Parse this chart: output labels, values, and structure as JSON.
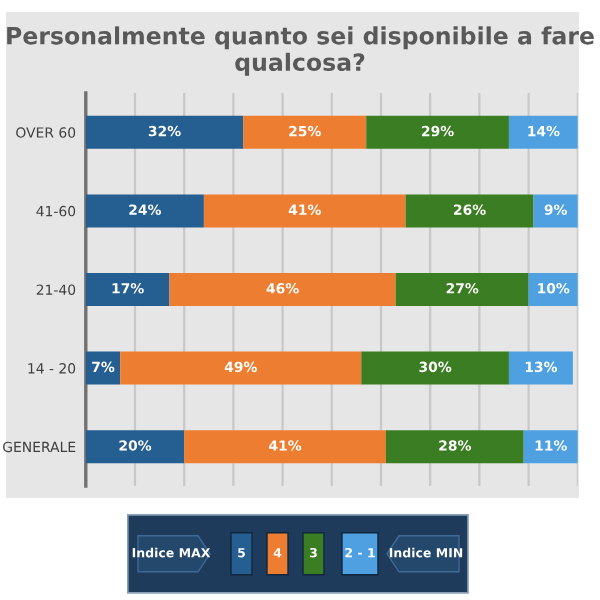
{
  "chart_data": {
    "type": "bar",
    "orientation": "horizontal",
    "stacked": true,
    "title": "Personalmente quanto sei disponibile a fare qualcosa?",
    "categories": [
      "OVER 60",
      "41-60",
      "21-40",
      "14 - 20",
      "GENERALE"
    ],
    "series": [
      {
        "name": "5",
        "color": "#255e91",
        "values": [
          32,
          24,
          17,
          7,
          20
        ],
        "value_labels": [
          "32%",
          "24%",
          "17%",
          "7%",
          "20%"
        ]
      },
      {
        "name": "4",
        "color": "#ed7d31",
        "values": [
          25,
          41,
          46,
          49,
          41
        ],
        "value_labels": [
          "25%",
          "41%",
          "46%",
          "49%",
          "41%"
        ]
      },
      {
        "name": "3",
        "color": "#3a7d22",
        "values": [
          29,
          26,
          27,
          30,
          28
        ],
        "value_labels": [
          "29%",
          "26%",
          "27%",
          "30%",
          "28%"
        ]
      },
      {
        "name": "2 - 1",
        "color": "#4ea0e0",
        "values": [
          14,
          9,
          10,
          13,
          11
        ],
        "value_labels": [
          "14%",
          "9%",
          "10%",
          "13%",
          "11%"
        ]
      }
    ],
    "xlim": [
      0,
      100
    ],
    "xticks": [
      {
        "value": 0,
        "label": null
      },
      {
        "value": 10,
        "label": null
      },
      {
        "value": 20,
        "label": null
      },
      {
        "value": 30,
        "label": null
      },
      {
        "value": 40,
        "label": null
      },
      {
        "value": 50,
        "label": null
      },
      {
        "value": 60,
        "label": null
      },
      {
        "value": 70,
        "label": null
      },
      {
        "value": 80,
        "label": null
      },
      {
        "value": 90,
        "label": null
      },
      {
        "value": 100,
        "label": null
      }
    ],
    "tick_labels": "y",
    "grid": "x",
    "legend": "bottom",
    "annotations": [
      "Indice MAX",
      "Indice MIN"
    ]
  }
}
